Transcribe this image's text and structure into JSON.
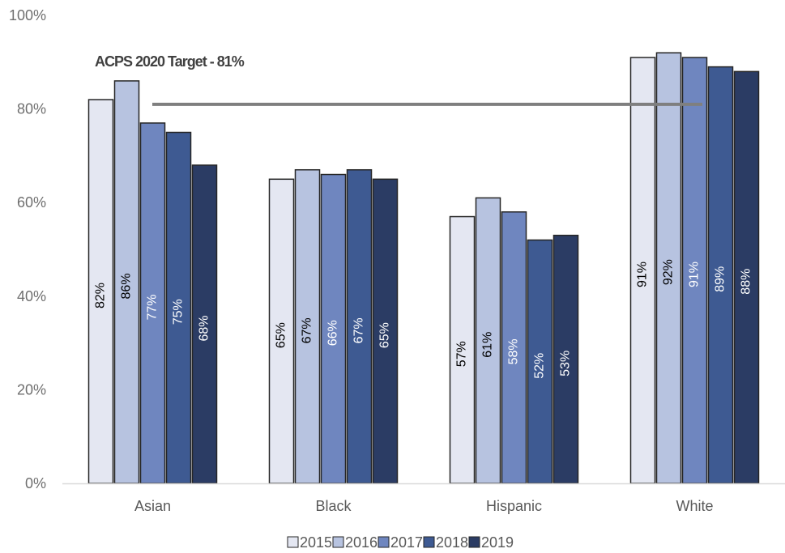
{
  "chart_data": {
    "type": "bar",
    "categories": [
      "Asian",
      "Black",
      "Hispanic",
      "White"
    ],
    "series": [
      {
        "name": "2015",
        "values": [
          82,
          65,
          57,
          91
        ],
        "labels": [
          "82%",
          "65%",
          "57%",
          "91%"
        ],
        "color": "#e4e7f2",
        "label_color": "#000000"
      },
      {
        "name": "2016",
        "values": [
          86,
          67,
          61,
          92
        ],
        "labels": [
          "86%",
          "67%",
          "61%",
          "92%"
        ],
        "color": "#b7c3e0",
        "label_color": "#000000"
      },
      {
        "name": "2017",
        "values": [
          77,
          66,
          58,
          91
        ],
        "labels": [
          "77%",
          "66%",
          "58%",
          "91%"
        ],
        "color": "#6f86bf",
        "label_color": "#ffffff"
      },
      {
        "name": "2018",
        "values": [
          75,
          67,
          52,
          89
        ],
        "labels": [
          "75%",
          "67%",
          "52%",
          "89%"
        ],
        "color": "#3e5a92",
        "label_color": "#ffffff"
      },
      {
        "name": "2019",
        "values": [
          68,
          65,
          53,
          88
        ],
        "labels": [
          "68%",
          "65%",
          "53%",
          "88%"
        ],
        "color": "#2b3c64",
        "label_color": "#ffffff"
      }
    ],
    "ylim": [
      0,
      100
    ],
    "y_ticks": [
      0,
      20,
      40,
      60,
      80,
      100
    ],
    "y_tick_labels": [
      "0%",
      "20%",
      "40%",
      "60%",
      "80%",
      "100%"
    ],
    "grid": false,
    "legend_position": "bottom",
    "target": {
      "label": "ACPS 2020 Target - 81%",
      "value": 81,
      "color": "#7f7f7f"
    },
    "bar_outline_color": "#262626"
  }
}
